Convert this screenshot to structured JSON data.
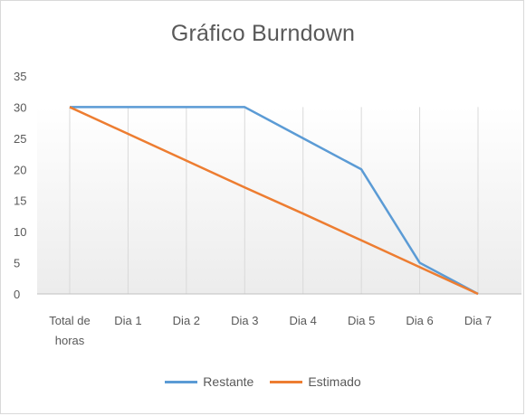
{
  "chart_data": {
    "type": "line",
    "title": "Gráfico Burndown",
    "xlabel": "",
    "ylabel": "",
    "categories": [
      [
        "Total de",
        "horas"
      ],
      [
        "Dia 1"
      ],
      [
        "Dia 2"
      ],
      [
        "Dia 3"
      ],
      [
        "Dia 4"
      ],
      [
        "Dia 5"
      ],
      [
        "Dia 6"
      ],
      [
        "Dia 7"
      ]
    ],
    "y_ticks": [
      0,
      5,
      10,
      15,
      20,
      25,
      30,
      35
    ],
    "ylim": [
      0,
      35
    ],
    "grid": "vertical",
    "legend": "bottom",
    "series": [
      {
        "name": "Restante",
        "color": "#5b9bd5",
        "values": [
          30,
          30,
          30,
          30,
          25,
          20,
          5,
          0
        ]
      },
      {
        "name": "Estimado",
        "color": "#ed7d31",
        "values": [
          30,
          25.7,
          21.4,
          17.1,
          12.9,
          8.6,
          4.3,
          0
        ]
      }
    ]
  }
}
